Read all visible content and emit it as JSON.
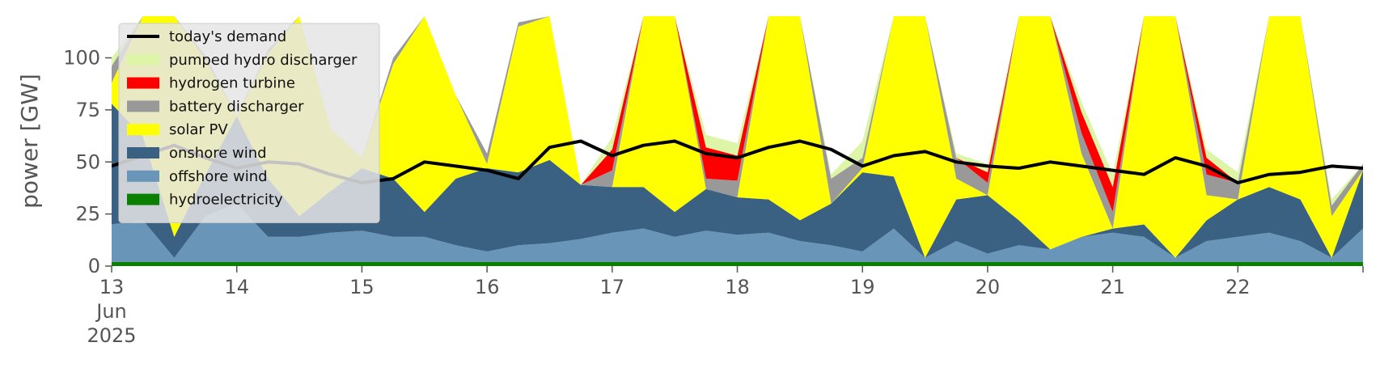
{
  "chart_data": {
    "type": "area",
    "ylabel": "power [GW]",
    "ylim": [
      0,
      120
    ],
    "xlim": [
      0,
      10
    ],
    "yticks": [
      0,
      25,
      50,
      75,
      100
    ],
    "x_ticks": [
      {
        "x": 0,
        "label": "13",
        "sublabels": [
          "Jun",
          "2025"
        ]
      },
      {
        "x": 1,
        "label": "14"
      },
      {
        "x": 2,
        "label": "15"
      },
      {
        "x": 3,
        "label": "16"
      },
      {
        "x": 4,
        "label": "17"
      },
      {
        "x": 5,
        "label": "18"
      },
      {
        "x": 6,
        "label": "19"
      },
      {
        "x": 7,
        "label": "20"
      },
      {
        "x": 8,
        "label": "21"
      },
      {
        "x": 9,
        "label": "22"
      },
      {
        "x": 10,
        "label": ""
      }
    ],
    "legend_position": "top-left",
    "legend": [
      {
        "label": "today's demand",
        "kind": "line",
        "color": "#000000"
      },
      {
        "label": "pumped hydro discharger",
        "kind": "patch",
        "color": "#dcf5a6"
      },
      {
        "label": "hydrogen turbine",
        "kind": "patch",
        "color": "#ff0000"
      },
      {
        "label": "battery discharger",
        "kind": "patch",
        "color": "#999999"
      },
      {
        "label": "solar PV",
        "kind": "patch",
        "color": "#ffff00"
      },
      {
        "label": "onshore wind",
        "kind": "patch",
        "color": "#3b6182"
      },
      {
        "label": "offshore wind",
        "kind": "patch",
        "color": "#6895b8"
      },
      {
        "label": "hydroelectricity",
        "kind": "patch",
        "color": "#0a8000"
      }
    ],
    "x": [
      0.0,
      0.25,
      0.5,
      0.75,
      1.0,
      1.25,
      1.5,
      1.75,
      2.0,
      2.25,
      2.5,
      2.75,
      3.0,
      3.25,
      3.5,
      3.75,
      4.0,
      4.25,
      4.5,
      4.75,
      5.0,
      5.25,
      5.5,
      5.75,
      6.0,
      6.25,
      6.5,
      6.75,
      7.0,
      7.25,
      7.5,
      7.75,
      8.0,
      8.25,
      8.5,
      8.75,
      9.0,
      9.25,
      9.5,
      9.75,
      10.0
    ],
    "stack_order": [
      "hydroelectricity",
      "offshore wind",
      "onshore wind",
      "solar PV",
      "battery discharger",
      "hydrogen turbine",
      "pumped hydro discharger"
    ],
    "series": [
      {
        "name": "hydroelectricity",
        "color": "#0a8000",
        "values": [
          2,
          2,
          2,
          2,
          2,
          2,
          2,
          2,
          2,
          2,
          2,
          2,
          2,
          2,
          2,
          2,
          2,
          2,
          2,
          2,
          2,
          2,
          2,
          2,
          2,
          2,
          2,
          2,
          2,
          2,
          2,
          2,
          2,
          2,
          2,
          2,
          2,
          2,
          2,
          2,
          2
        ]
      },
      {
        "name": "offshore wind",
        "color": "#6895b8",
        "values": [
          18,
          20,
          2,
          22,
          28,
          12,
          12,
          14,
          15,
          12,
          12,
          8,
          5,
          8,
          9,
          11,
          14,
          16,
          12,
          15,
          13,
          14,
          10,
          8,
          5,
          16,
          2,
          10,
          4,
          8,
          6,
          12,
          14,
          12,
          2,
          10,
          12,
          14,
          10,
          2,
          16
        ]
      },
      {
        "name": "onshore wind",
        "color": "#3b6182",
        "values": [
          58,
          40,
          10,
          20,
          42,
          28,
          10,
          20,
          30,
          28,
          12,
          32,
          40,
          35,
          40,
          26,
          22,
          20,
          12,
          20,
          18,
          16,
          10,
          20,
          38,
          25,
          0,
          20,
          28,
          12,
          0,
          0,
          2,
          6,
          0,
          10,
          18,
          22,
          20,
          0,
          28
        ]
      },
      {
        "name": "solar PV",
        "color": "#ffff00",
        "values": [
          10,
          60,
          120,
          55,
          0,
          60,
          120,
          30,
          5,
          55,
          120,
          40,
          2,
          70,
          120,
          0,
          0,
          120,
          120,
          0,
          0,
          120,
          120,
          0,
          2,
          120,
          120,
          10,
          0,
          120,
          120,
          40,
          0,
          120,
          120,
          12,
          0,
          120,
          120,
          20,
          0
        ]
      },
      {
        "name": "battery discharger",
        "color": "#999999",
        "values": [
          8,
          2,
          0,
          2,
          0,
          2,
          0,
          0,
          0,
          3,
          0,
          0,
          5,
          2,
          0,
          0,
          8,
          0,
          0,
          5,
          8,
          0,
          0,
          12,
          5,
          0,
          0,
          10,
          6,
          0,
          0,
          10,
          8,
          0,
          0,
          10,
          8,
          0,
          0,
          5,
          3
        ]
      },
      {
        "name": "hydrogen turbine",
        "color": "#ff0000",
        "values": [
          0,
          0,
          0,
          0,
          0,
          0,
          0,
          0,
          0,
          0,
          0,
          0,
          0,
          0,
          0,
          0,
          10,
          0,
          0,
          15,
          12,
          0,
          0,
          0,
          0,
          0,
          0,
          0,
          5,
          0,
          0,
          10,
          12,
          0,
          0,
          8,
          0,
          0,
          0,
          0,
          0
        ]
      },
      {
        "name": "pumped hydro discharger",
        "color": "#dcf5a6",
        "values": [
          4,
          0,
          0,
          0,
          0,
          0,
          0,
          0,
          0,
          0,
          0,
          0,
          0,
          0,
          0,
          0,
          6,
          0,
          0,
          6,
          6,
          0,
          0,
          2,
          8,
          0,
          0,
          2,
          4,
          0,
          0,
          5,
          6,
          0,
          0,
          4,
          5,
          0,
          0,
          3,
          0
        ]
      }
    ],
    "demand": {
      "name": "today's demand",
      "color": "#000000",
      "values": [
        48,
        53,
        58,
        52,
        47,
        50,
        49,
        44,
        40,
        42,
        50,
        48,
        46,
        42,
        57,
        60,
        53,
        58,
        60,
        54,
        52,
        57,
        60,
        56,
        48,
        53,
        55,
        50,
        48,
        47,
        50,
        48,
        46,
        44,
        52,
        48,
        40,
        44,
        45,
        48,
        47
      ]
    }
  }
}
